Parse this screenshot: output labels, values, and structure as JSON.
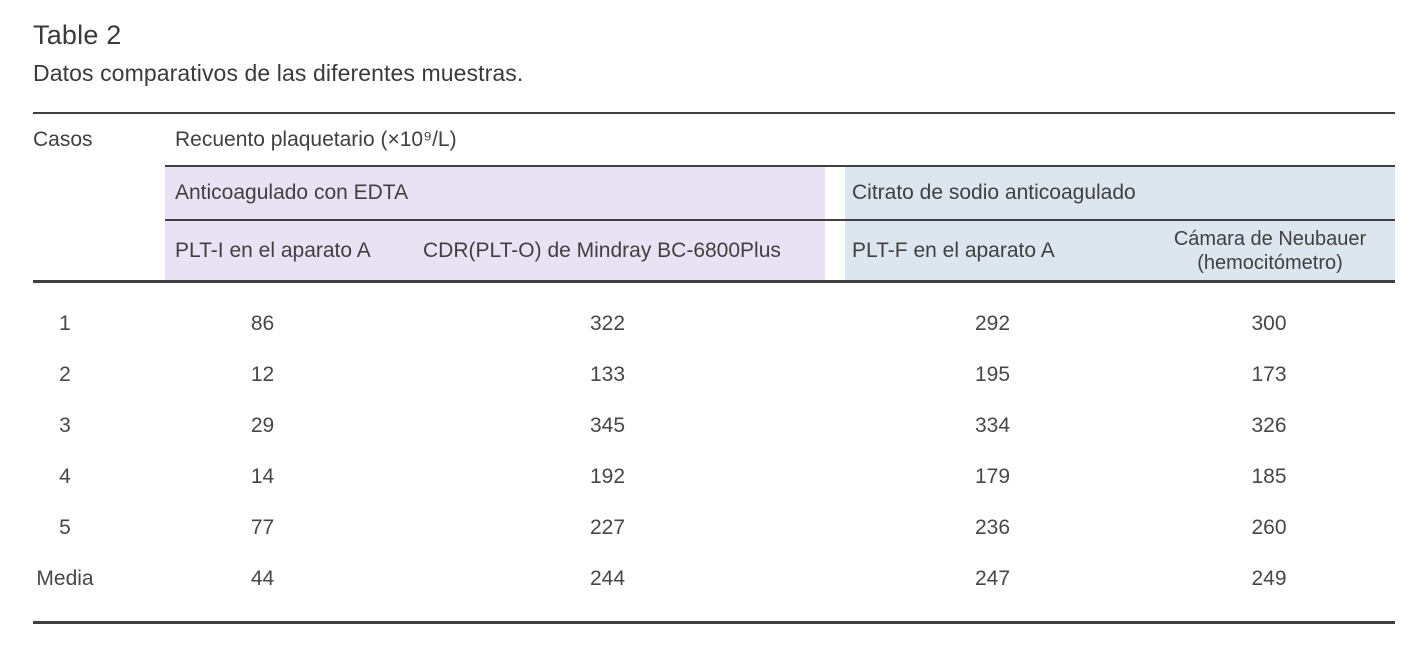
{
  "caption": {
    "label": "Table 2",
    "title": "Datos comparativos de las diferentes muestras."
  },
  "colors": {
    "lavender": "#e9e2f4",
    "blue": "#dde6ef",
    "rule": "#3f3f3f",
    "text": "#404040"
  },
  "table": {
    "casos_header": "Casos",
    "top_header": "Recuento plaquetario (×10⁹/L)",
    "groups": {
      "edta": "Anticoagulado con EDTA",
      "citrato": "Citrato de sodio anticoagulado"
    },
    "subheaders": {
      "plt_i": "PLT-I en el aparato A",
      "cdr": "CDR(PLT-O) de Mindray BC-6800Plus",
      "plt_f": "PLT-F en el aparato A",
      "camara_line1": "Cámara de Neubauer",
      "camara_line2": "(hemocitómetro)"
    },
    "rows": [
      {
        "caso": "1",
        "plt_i": "86",
        "cdr": "322",
        "plt_f": "292",
        "camara": "300"
      },
      {
        "caso": "2",
        "plt_i": "12",
        "cdr": "133",
        "plt_f": "195",
        "camara": "173"
      },
      {
        "caso": "3",
        "plt_i": "29",
        "cdr": "345",
        "plt_f": "334",
        "camara": "326"
      },
      {
        "caso": "4",
        "plt_i": "14",
        "cdr": "192",
        "plt_f": "179",
        "camara": "185"
      },
      {
        "caso": "5",
        "plt_i": "77",
        "cdr": "227",
        "plt_f": "236",
        "camara": "260"
      },
      {
        "caso": "Media",
        "plt_i": "44",
        "cdr": "244",
        "plt_f": "247",
        "camara": "249"
      }
    ]
  }
}
